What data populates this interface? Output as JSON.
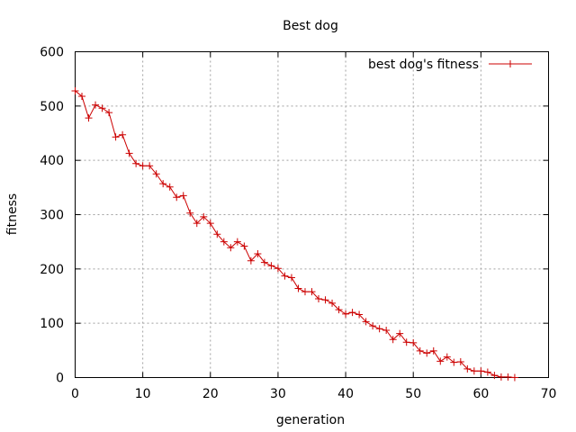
{
  "chart_data": {
    "type": "line",
    "title": "Best dog",
    "xlabel": "generation",
    "ylabel": "fitness",
    "xlim": [
      0,
      70
    ],
    "ylim": [
      0,
      600
    ],
    "xticks": [
      "0",
      "10",
      "20",
      "30",
      "40",
      "50",
      "60",
      "70"
    ],
    "yticks": [
      "0",
      "100",
      "200",
      "300",
      "400",
      "500",
      "600"
    ],
    "grid": true,
    "legend_position": "top-right",
    "series": [
      {
        "name": "best dog's fitness",
        "color": "#cc0000",
        "marker": "plus",
        "x": [
          0,
          1,
          2,
          3,
          4,
          5,
          6,
          7,
          8,
          9,
          10,
          11,
          12,
          13,
          14,
          15,
          16,
          17,
          18,
          19,
          20,
          21,
          22,
          23,
          24,
          25,
          26,
          27,
          28,
          29,
          30,
          31,
          32,
          33,
          34,
          35,
          36,
          37,
          38,
          39,
          40,
          41,
          42,
          43,
          44,
          45,
          46,
          47,
          48,
          49,
          50,
          51,
          52,
          53,
          54,
          55,
          56,
          57,
          58,
          59,
          60,
          61,
          62,
          63,
          64,
          65
        ],
        "y": [
          528,
          518,
          478,
          502,
          496,
          488,
          443,
          447,
          413,
          394,
          390,
          390,
          375,
          357,
          351,
          332,
          335,
          303,
          284,
          296,
          284,
          264,
          250,
          239,
          250,
          242,
          215,
          228,
          212,
          206,
          201,
          187,
          184,
          164,
          158,
          158,
          145,
          143,
          137,
          125,
          117,
          120,
          116,
          103,
          95,
          90,
          87,
          70,
          81,
          65,
          64,
          49,
          45,
          49,
          30,
          38,
          28,
          29,
          16,
          12,
          12,
          10,
          4,
          1,
          1,
          0
        ]
      }
    ]
  }
}
